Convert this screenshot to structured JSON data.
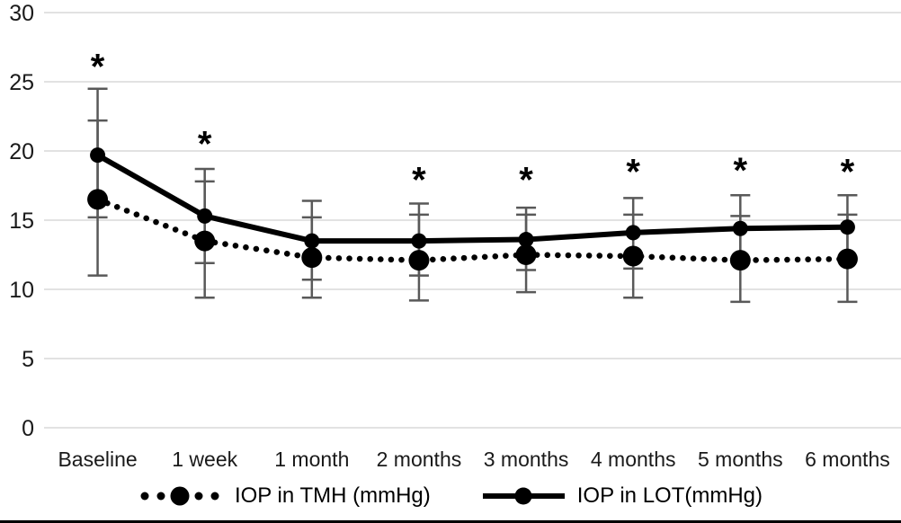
{
  "chart_data": {
    "type": "line",
    "title": "",
    "categories": [
      "Baseline",
      "1 week",
      "1 month",
      "2 months",
      "3 months",
      "4 months",
      "5 months",
      "6 months"
    ],
    "series": [
      {
        "name": "IOP in TMH (mmHg)",
        "line_style": "dotted",
        "marker": "filled-circle",
        "color": "#000000",
        "values": [
          16.5,
          13.5,
          12.3,
          12.1,
          12.5,
          12.4,
          12.1,
          12.2
        ],
        "error_upper": [
          22.2,
          17.8,
          15.2,
          15.4,
          15.4,
          15.4,
          15.3,
          15.4
        ],
        "error_lower": [
          11.0,
          9.4,
          9.4,
          9.2,
          9.8,
          9.4,
          9.1,
          9.1
        ]
      },
      {
        "name": "IOP in LOT(mmHg)",
        "line_style": "solid",
        "marker": "filled-circle",
        "color": "#000000",
        "values": [
          19.7,
          15.3,
          13.5,
          13.5,
          13.6,
          14.1,
          14.4,
          14.5
        ],
        "error_upper": [
          24.5,
          18.7,
          16.4,
          16.2,
          15.9,
          16.6,
          16.8,
          16.8
        ],
        "error_lower": [
          15.2,
          11.9,
          10.7,
          11.0,
          11.4,
          11.5,
          12.0,
          12.1
        ]
      }
    ],
    "significance_markers": {
      "symbol": "*",
      "y_values": [
        26.6,
        21.0,
        null,
        18.4,
        18.4,
        19.0,
        19.1,
        19.0
      ]
    },
    "y_axis": {
      "min": 0,
      "max": 30,
      "step": 5,
      "tick_labels": [
        "0",
        "5",
        "10",
        "15",
        "20",
        "25",
        "30"
      ]
    },
    "x_axis": {
      "tick_labels": [
        "Baseline",
        "1 week",
        "1 month",
        "2 months",
        "3 months",
        "4 months",
        "5 months",
        "6 months"
      ]
    },
    "grid": true,
    "legend_position": "bottom",
    "colors": {
      "gridline": "#d9d9d9",
      "error_bar": "#595959",
      "text": "#1a1a1a",
      "line": "#000000"
    }
  },
  "legend": {
    "items": [
      {
        "label": "IOP in TMH (mmHg)",
        "swatch": "dotted-line-with-circle"
      },
      {
        "label": "IOP in LOT(mmHg)",
        "swatch": "solid-line-with-circle"
      }
    ]
  }
}
